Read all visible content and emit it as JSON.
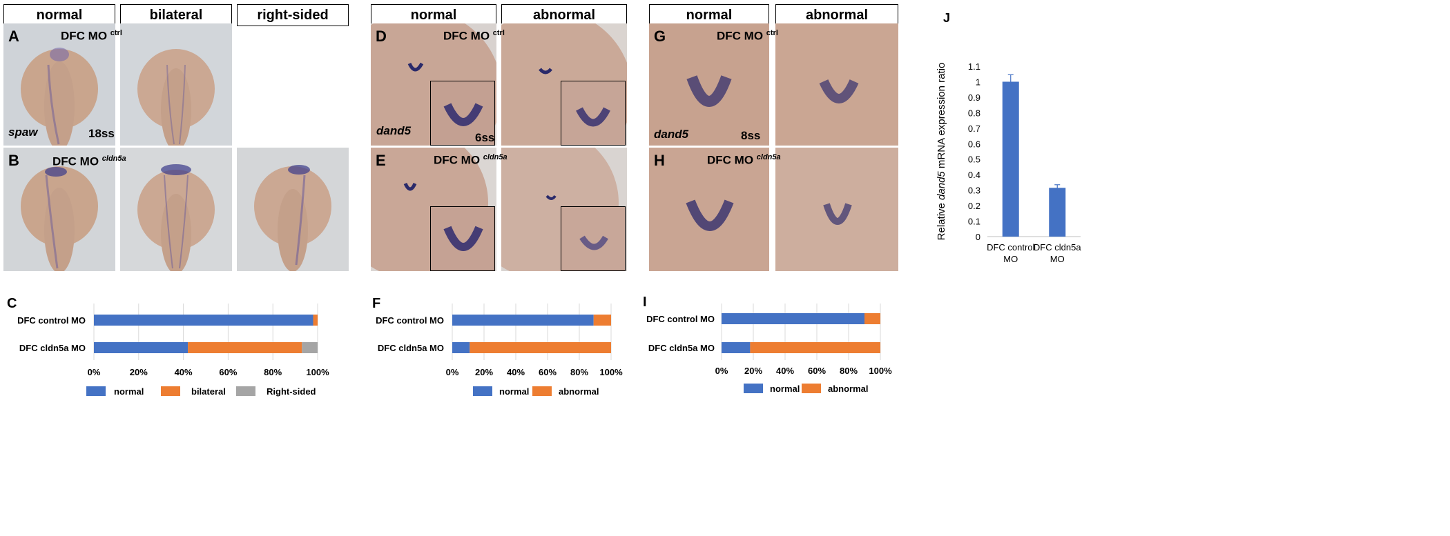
{
  "headers": {
    "left_normal": "normal",
    "left_bilateral": "bilateral",
    "left_right_sided": "right-sided",
    "mid_normal": "normal",
    "mid_abnormal": "abnormal",
    "right_normal": "normal",
    "right_abnormal": "abnormal"
  },
  "panels": {
    "A": "A",
    "B": "B",
    "C": "C",
    "D": "D",
    "E": "E",
    "F": "F",
    "G": "G",
    "H": "H",
    "I": "I",
    "J": "J"
  },
  "overlays": {
    "mo_prefix": "DFC MO",
    "ctrl_sup": "ctrl",
    "cldn5a_sup": "cldn5a",
    "spaw": "spaw",
    "dand5": "dand5",
    "stage_18ss": "18ss",
    "stage_6ss": "6ss",
    "stage_8ss": "8ss"
  },
  "colors": {
    "blue": "#4472c4",
    "orange": "#ed7d31",
    "gray": "#a5a5a5"
  },
  "chart_data": [
    {
      "id": "C",
      "type": "bar",
      "orientation": "horizontal-stacked-100",
      "categories": [
        "DFC control MO",
        "DFC cldn5a MO"
      ],
      "series": [
        {
          "name": "normal",
          "values": [
            98,
            42
          ]
        },
        {
          "name": "bilateral",
          "values": [
            2,
            51
          ]
        },
        {
          "name": "Right-sided",
          "values": [
            0,
            7
          ]
        }
      ],
      "ticks": [
        "0%",
        "20%",
        "40%",
        "60%",
        "80%",
        "100%"
      ],
      "legend_position": "bottom"
    },
    {
      "id": "F",
      "type": "bar",
      "orientation": "horizontal-stacked-100",
      "categories": [
        "DFC control MO",
        "DFC cldn5a MO"
      ],
      "series": [
        {
          "name": "normal",
          "values": [
            89,
            11
          ]
        },
        {
          "name": "abnormal",
          "values": [
            11,
            89
          ]
        }
      ],
      "ticks": [
        "0%",
        "20%",
        "40%",
        "60%",
        "80%",
        "100%"
      ],
      "legend_position": "bottom"
    },
    {
      "id": "I",
      "type": "bar",
      "orientation": "horizontal-stacked-100",
      "categories": [
        "DFC control MO",
        "DFC cldn5a MO"
      ],
      "series": [
        {
          "name": "normal",
          "values": [
            90,
            18
          ]
        },
        {
          "name": "abnormal",
          "values": [
            10,
            82
          ]
        }
      ],
      "ticks": [
        "0%",
        "20%",
        "40%",
        "60%",
        "80%",
        "100%"
      ],
      "legend_position": "bottom"
    },
    {
      "id": "J",
      "type": "bar",
      "categories": [
        "DFC control MO",
        "DFC cldn5a MO"
      ],
      "values": [
        1.0,
        0.315
      ],
      "errors": [
        0.045,
        0.02
      ],
      "ylabel_parts": [
        "Relative ",
        "dand5",
        " mRNA expression ratio"
      ],
      "ylim": [
        0,
        1.1
      ],
      "yticks": [
        "0",
        "0.1",
        "0.2",
        "0.3",
        "0.4",
        "0.5",
        "0.6",
        "0.7",
        "0.8",
        "0.9",
        "1",
        "1.1"
      ]
    }
  ]
}
